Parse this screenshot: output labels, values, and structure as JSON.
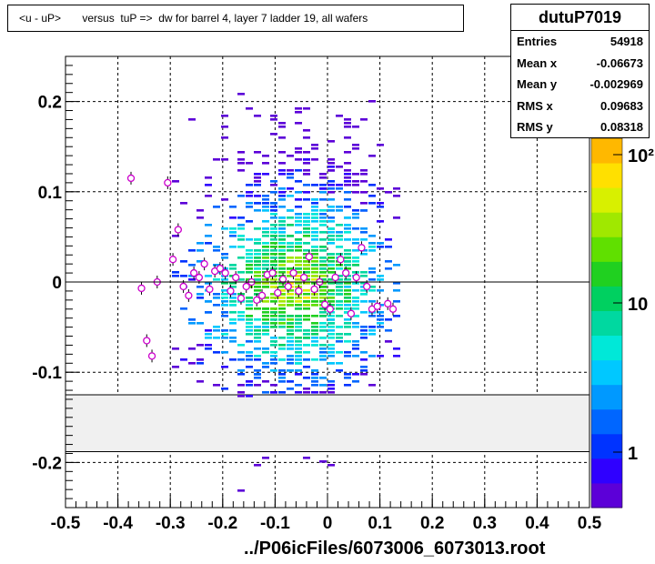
{
  "title": "<u - uP>       versus  tuP =>  dw for barrel 4, layer 7 ladder 19, all wafers",
  "stats": {
    "name": "dutuP7019",
    "rows": [
      {
        "key": "Entries",
        "value": "54918"
      },
      {
        "key": "Mean x",
        "value": "-0.06673"
      },
      {
        "key": "Mean y",
        "value": "-0.002969"
      },
      {
        "key": "RMS x",
        "value": "0.09683"
      },
      {
        "key": "RMS y",
        "value": "0.08318"
      }
    ]
  },
  "xaxis_label": "../P06icFiles/6073006_6073013.root",
  "colors": {
    "background": "#ffffff",
    "band": "#f0f0f0",
    "profile_marker": "#cc00cc"
  },
  "chart_data": {
    "type": "heatmap",
    "title": "<u - uP>       versus  tuP =>  dw for barrel 4, layer 7 ladder 19, all wafers",
    "xlabel": "../P06icFiles/6073006_6073013.root",
    "ylabel": "",
    "xlim": [
      -0.5,
      0.5
    ],
    "ylim": [
      -0.25,
      0.25
    ],
    "x_ticks": [
      "-0.5",
      "-0.4",
      "-0.3",
      "-0.2",
      "-0.1",
      "0",
      "0.1",
      "0.2",
      "0.3",
      "0.4",
      "0.5"
    ],
    "y_ticks": [
      "-0.2",
      "-0.1",
      "0",
      "0.1",
      "0.2"
    ],
    "grid": true,
    "colorbar": {
      "scale": "log",
      "ticks": [
        "1",
        "10",
        "10²"
      ]
    },
    "excluded_band_y": [
      -0.188,
      -0.125
    ],
    "density": {
      "center_x": -0.07,
      "center_y": -0.003,
      "rms_x": 0.097,
      "rms_y": 0.083,
      "x_range": [
        -0.3,
        0.13
      ]
    },
    "profile_points": [
      {
        "x": -0.375,
        "y": 0.115
      },
      {
        "x": -0.355,
        "y": -0.007
      },
      {
        "x": -0.345,
        "y": -0.065
      },
      {
        "x": -0.335,
        "y": -0.082
      },
      {
        "x": -0.325,
        "y": 0.0
      },
      {
        "x": -0.305,
        "y": 0.11
      },
      {
        "x": -0.295,
        "y": 0.025
      },
      {
        "x": -0.285,
        "y": 0.058
      },
      {
        "x": -0.275,
        "y": -0.005
      },
      {
        "x": -0.265,
        "y": -0.015
      },
      {
        "x": -0.255,
        "y": 0.01
      },
      {
        "x": -0.245,
        "y": 0.005
      },
      {
        "x": -0.235,
        "y": 0.02
      },
      {
        "x": -0.225,
        "y": -0.008
      },
      {
        "x": -0.215,
        "y": 0.012
      },
      {
        "x": -0.205,
        "y": 0.015
      },
      {
        "x": -0.195,
        "y": 0.01
      },
      {
        "x": -0.185,
        "y": -0.01
      },
      {
        "x": -0.175,
        "y": 0.005
      },
      {
        "x": -0.165,
        "y": -0.018
      },
      {
        "x": -0.155,
        "y": -0.005
      },
      {
        "x": -0.145,
        "y": 0.0
      },
      {
        "x": -0.135,
        "y": -0.02
      },
      {
        "x": -0.125,
        "y": -0.015
      },
      {
        "x": -0.115,
        "y": 0.008
      },
      {
        "x": -0.105,
        "y": 0.01
      },
      {
        "x": -0.095,
        "y": -0.012
      },
      {
        "x": -0.085,
        "y": 0.003
      },
      {
        "x": -0.075,
        "y": -0.005
      },
      {
        "x": -0.065,
        "y": 0.01
      },
      {
        "x": -0.055,
        "y": -0.01
      },
      {
        "x": -0.045,
        "y": 0.005
      },
      {
        "x": -0.035,
        "y": 0.028
      },
      {
        "x": -0.025,
        "y": -0.008
      },
      {
        "x": -0.015,
        "y": 0.0
      },
      {
        "x": -0.005,
        "y": -0.025
      },
      {
        "x": 0.005,
        "y": -0.03
      },
      {
        "x": 0.015,
        "y": 0.005
      },
      {
        "x": 0.025,
        "y": 0.025
      },
      {
        "x": 0.035,
        "y": 0.01
      },
      {
        "x": 0.045,
        "y": -0.035
      },
      {
        "x": 0.055,
        "y": 0.005
      },
      {
        "x": 0.065,
        "y": 0.038
      },
      {
        "x": 0.075,
        "y": -0.005
      },
      {
        "x": 0.085,
        "y": -0.03
      },
      {
        "x": 0.095,
        "y": -0.027
      },
      {
        "x": 0.115,
        "y": -0.024
      },
      {
        "x": 0.125,
        "y": -0.03
      }
    ]
  }
}
